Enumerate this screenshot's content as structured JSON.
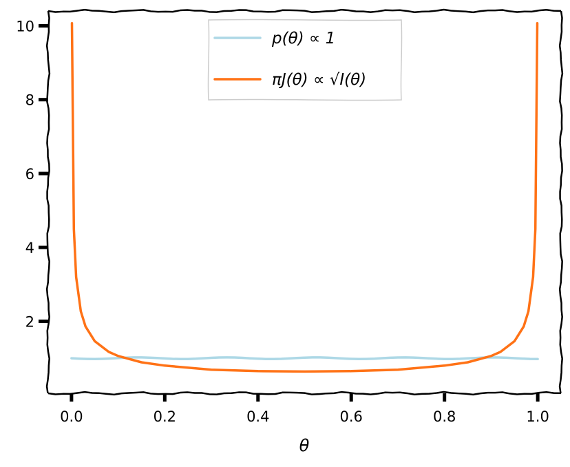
{
  "chart_data": {
    "type": "line",
    "title": "",
    "xlabel": "θ",
    "ylabel": "",
    "xlim": [
      -0.05,
      1.05
    ],
    "ylim": [
      0.05,
      10.4
    ],
    "x_ticks": [
      "0.0",
      "0.2",
      "0.4",
      "0.6",
      "0.8",
      "1.0"
    ],
    "y_ticks": [
      "2",
      "4",
      "6",
      "8",
      "10"
    ],
    "grid": false,
    "legend_position": "top-center",
    "series": [
      {
        "name": "p(θ) ∝ 1",
        "color": "#add8e6",
        "x": [
          0.0,
          0.1,
          0.2,
          0.3,
          0.4,
          0.5,
          0.6,
          0.7,
          0.8,
          0.9,
          1.0
        ],
        "y": [
          1.0,
          1.0,
          1.0,
          1.0,
          1.0,
          1.0,
          1.0,
          1.0,
          1.0,
          1.0,
          1.0
        ]
      },
      {
        "name": "πJ(θ) ∝ √I(θ)",
        "color": "#ff7216",
        "x": [
          0.001,
          0.005,
          0.01,
          0.02,
          0.03,
          0.05,
          0.08,
          0.1,
          0.15,
          0.2,
          0.3,
          0.4,
          0.5,
          0.6,
          0.7,
          0.8,
          0.85,
          0.9,
          0.92,
          0.95,
          0.97,
          0.98,
          0.99,
          0.995,
          0.999
        ],
        "y": [
          10.07,
          4.5,
          3.2,
          2.27,
          1.86,
          1.46,
          1.17,
          1.06,
          0.89,
          0.8,
          0.69,
          0.65,
          0.64,
          0.65,
          0.69,
          0.8,
          0.89,
          1.06,
          1.17,
          1.46,
          1.86,
          2.27,
          3.2,
          4.5,
          10.07
        ]
      }
    ]
  }
}
